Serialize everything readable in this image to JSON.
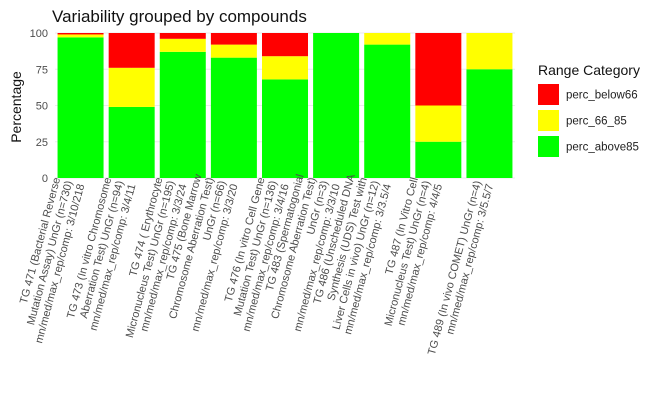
{
  "chart_data": {
    "type": "bar",
    "stacked": true,
    "title": "Variability grouped by compounds",
    "xlabel": "",
    "ylabel": "Percentage",
    "ylim": [
      0,
      100
    ],
    "yticks": [
      "0",
      "25",
      "50",
      "75",
      "100"
    ],
    "grid": true,
    "legend_position": "right",
    "categories": [
      [
        "TG 471 (Bacterial Reverse",
        "Mutation Assay) UnGr (n=730)",
        "mn/med/max_rep/comp: 3/10/218"
      ],
      [
        "TG 473 (In vitro Chromosome",
        "Aberration Test) UnGr (n=94)",
        "mn/med/max_rep/comp: 3/4/11"
      ],
      [
        "TG 474 ( Erythrocyte",
        "Micronucleus Test) UnGr (n=195)",
        "mn/med/max_rep/comp: 3/3/24"
      ],
      [
        "TG 475 (Bone Marrow",
        "Chromosome Aberration Test)",
        "UnGr (n=66)",
        "mn/med/max_rep/comp: 3/3/20"
      ],
      [
        "TG 476 (In vitro Cell Gene",
        "Mutation Test) UnGr (n=136)",
        "mn/med/max_rep/comp: 3/4/16"
      ],
      [
        "TG 483 (Spermatogonial",
        "Chromosome Aberration Test)",
        "UnGr (n=3)",
        "mn/med/max_rep/comp: 3/3/10"
      ],
      [
        "TG 486 (Unscheduled DNA",
        "Synthesis (UDS) Test with",
        "Liver Cells in vivo) UnGr (n=12)",
        "mn/med/max_rep/comp: 3/3.5/4"
      ],
      [
        "TG 487 (In Vitro Cell",
        "Micronucleus Test) UnGr (n=4)",
        "mn/med/max_rep/comp: 4/4/5"
      ],
      [
        "TG 489 (In vivo COMET) UnGr (n=4)",
        "mn/med/max_rep/comp: 3/5.5/7"
      ]
    ],
    "series": [
      {
        "name": "perc_above85",
        "color": "#00ff00",
        "values": [
          97,
          49,
          87,
          83,
          68,
          100,
          92,
          25,
          75
        ]
      },
      {
        "name": "perc_66_85",
        "color": "#ffff00",
        "values": [
          2,
          27,
          9,
          9,
          16,
          0,
          8,
          25,
          25
        ]
      },
      {
        "name": "perc_below66",
        "color": "#ff0000",
        "values": [
          1,
          24,
          4,
          8,
          16,
          0,
          0,
          50,
          0
        ]
      }
    ],
    "legend": {
      "title": "Range Category",
      "entries": [
        {
          "label": "perc_below66",
          "color": "#ff0000"
        },
        {
          "label": "perc_66_85",
          "color": "#ffff00"
        },
        {
          "label": "perc_above85",
          "color": "#00ff00"
        }
      ]
    }
  }
}
